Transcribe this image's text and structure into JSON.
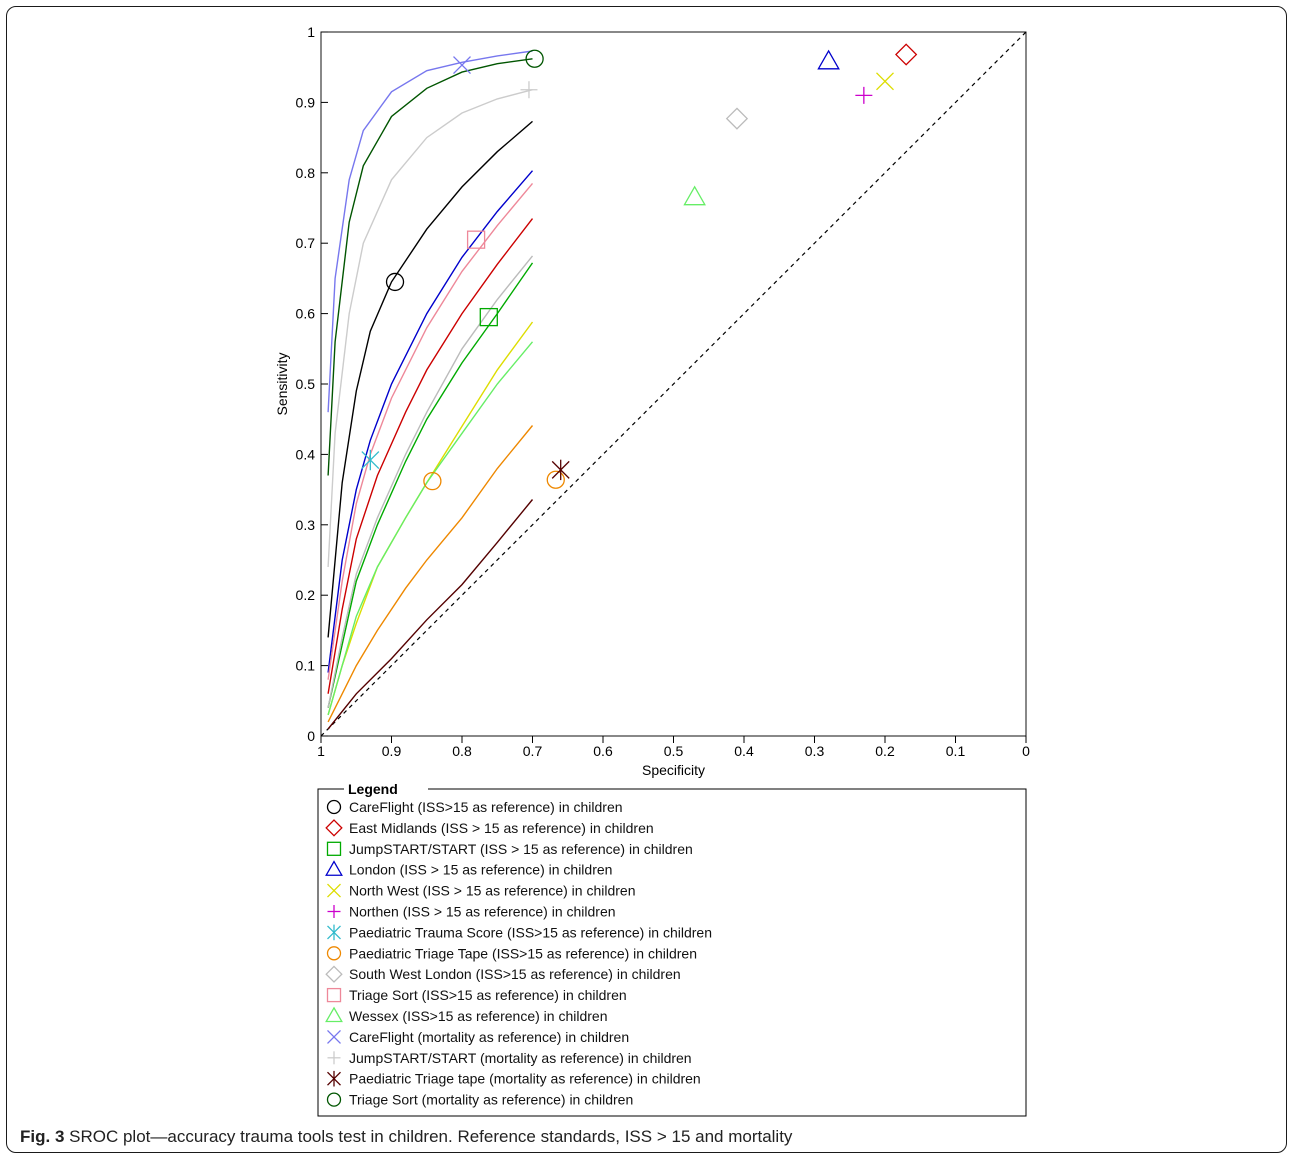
{
  "chart_data": {
    "type": "scatter",
    "xlabel": "Specificity",
    "ylabel": "Sensitivity",
    "xlim": [
      1,
      0
    ],
    "ylim": [
      0,
      1
    ],
    "x_reversed": true,
    "grid": false,
    "xticks": [
      1,
      0.9,
      0.8,
      0.7,
      0.6,
      0.5,
      0.4,
      0.3,
      0.2,
      0.1,
      0
    ],
    "yticks": [
      0,
      0.1,
      0.2,
      0.3,
      0.4,
      0.5,
      0.6,
      0.7,
      0.8,
      0.9,
      1
    ],
    "reference_line": "diagonal-dashed",
    "legend_title": "Legend",
    "legend_position": "below",
    "series": [
      {
        "name": "CareFlight (ISS>15 as reference) in children",
        "marker": "circle",
        "color": "#000000",
        "point": [
          0.895,
          0.645
        ],
        "curve": [
          [
            0.99,
            0.14
          ],
          [
            0.97,
            0.36
          ],
          [
            0.95,
            0.49
          ],
          [
            0.93,
            0.575
          ],
          [
            0.9,
            0.645
          ],
          [
            0.85,
            0.72
          ],
          [
            0.8,
            0.78
          ],
          [
            0.75,
            0.83
          ],
          [
            0.7,
            0.873
          ]
        ]
      },
      {
        "name": "East Midlands (ISS > 15 as reference) in children",
        "marker": "diamond",
        "color": "#cc0000",
        "point": [
          0.17,
          0.968
        ],
        "curve": [
          [
            0.99,
            0.06
          ],
          [
            0.97,
            0.18
          ],
          [
            0.95,
            0.28
          ],
          [
            0.92,
            0.37
          ],
          [
            0.88,
            0.46
          ],
          [
            0.85,
            0.52
          ],
          [
            0.8,
            0.6
          ],
          [
            0.75,
            0.67
          ],
          [
            0.7,
            0.735
          ]
        ]
      },
      {
        "name": "JumpSTART/START (ISS > 15 as reference) in children",
        "marker": "square",
        "color": "#00aa00",
        "point": [
          0.762,
          0.595
        ],
        "curve": [
          [
            0.99,
            0.04
          ],
          [
            0.97,
            0.13
          ],
          [
            0.95,
            0.22
          ],
          [
            0.92,
            0.3
          ],
          [
            0.88,
            0.39
          ],
          [
            0.85,
            0.45
          ],
          [
            0.8,
            0.53
          ],
          [
            0.75,
            0.6
          ],
          [
            0.7,
            0.672
          ]
        ]
      },
      {
        "name": "London (ISS > 15 as reference) in children",
        "marker": "triangle",
        "color": "#0000cc",
        "point": [
          0.28,
          0.958
        ],
        "curve": [
          [
            0.99,
            0.09
          ],
          [
            0.97,
            0.25
          ],
          [
            0.95,
            0.35
          ],
          [
            0.93,
            0.42
          ],
          [
            0.9,
            0.5
          ],
          [
            0.85,
            0.6
          ],
          [
            0.8,
            0.68
          ],
          [
            0.75,
            0.745
          ],
          [
            0.7,
            0.803
          ]
        ]
      },
      {
        "name": "North West (ISS > 15 as reference) in children",
        "marker": "x",
        "color": "#dddd00",
        "point": [
          0.2,
          0.93
        ],
        "curve": [
          [
            0.99,
            0.03
          ],
          [
            0.97,
            0.1
          ],
          [
            0.95,
            0.16
          ],
          [
            0.92,
            0.24
          ],
          [
            0.88,
            0.31
          ],
          [
            0.85,
            0.36
          ],
          [
            0.8,
            0.44
          ],
          [
            0.75,
            0.52
          ],
          [
            0.7,
            0.588
          ]
        ]
      },
      {
        "name": "Northen (ISS > 15 as reference) in children",
        "marker": "plus",
        "color": "#cc00cc",
        "point": [
          0.23,
          0.91
        ]
      },
      {
        "name": "Paediatric Trauma Score (ISS>15 as reference) in children",
        "marker": "asterisk",
        "color": "#33bbcc",
        "point": [
          0.93,
          0.392
        ]
      },
      {
        "name": "Paediatric Triage Tape (ISS>15 as reference) in children",
        "marker": "circle",
        "color": "#ee8800",
        "points": [
          [
            0.842,
            0.362
          ],
          [
            0.667,
            0.364
          ]
        ],
        "curve": [
          [
            0.99,
            0.02
          ],
          [
            0.97,
            0.06
          ],
          [
            0.95,
            0.1
          ],
          [
            0.92,
            0.15
          ],
          [
            0.88,
            0.21
          ],
          [
            0.85,
            0.25
          ],
          [
            0.8,
            0.31
          ],
          [
            0.75,
            0.38
          ],
          [
            0.7,
            0.441
          ]
        ]
      },
      {
        "name": "South West London (ISS>15 as reference) in children",
        "marker": "diamond",
        "color": "#bbbbbb",
        "point": [
          0.41,
          0.877
        ],
        "curve": [
          [
            0.99,
            0.04
          ],
          [
            0.97,
            0.14
          ],
          [
            0.95,
            0.23
          ],
          [
            0.92,
            0.31
          ],
          [
            0.88,
            0.4
          ],
          [
            0.85,
            0.46
          ],
          [
            0.8,
            0.55
          ],
          [
            0.75,
            0.62
          ],
          [
            0.7,
            0.682
          ]
        ]
      },
      {
        "name": "Triage Sort (ISS>15 as reference) in children",
        "marker": "square",
        "color": "#ee8899",
        "point": [
          0.78,
          0.705
        ],
        "curve": [
          [
            0.99,
            0.08
          ],
          [
            0.97,
            0.22
          ],
          [
            0.95,
            0.33
          ],
          [
            0.93,
            0.4
          ],
          [
            0.9,
            0.48
          ],
          [
            0.85,
            0.58
          ],
          [
            0.8,
            0.66
          ],
          [
            0.75,
            0.725
          ],
          [
            0.7,
            0.785
          ]
        ]
      },
      {
        "name": "Wessex (ISS>15 as reference) in children",
        "marker": "triangle",
        "color": "#66ee66",
        "point": [
          0.47,
          0.765
        ],
        "curve": [
          [
            0.99,
            0.03
          ],
          [
            0.97,
            0.1
          ],
          [
            0.95,
            0.17
          ],
          [
            0.92,
            0.24
          ],
          [
            0.88,
            0.31
          ],
          [
            0.85,
            0.36
          ],
          [
            0.8,
            0.43
          ],
          [
            0.75,
            0.5
          ],
          [
            0.7,
            0.56
          ]
        ]
      },
      {
        "name": "CareFlight (mortality as reference) in children",
        "marker": "x",
        "color": "#7777ee",
        "point": [
          0.8,
          0.953
        ],
        "curve": [
          [
            0.99,
            0.46
          ],
          [
            0.98,
            0.65
          ],
          [
            0.96,
            0.79
          ],
          [
            0.94,
            0.86
          ],
          [
            0.9,
            0.915
          ],
          [
            0.85,
            0.945
          ],
          [
            0.8,
            0.957
          ],
          [
            0.75,
            0.966
          ],
          [
            0.7,
            0.973
          ]
        ]
      },
      {
        "name": "JumpSTART/START (mortality as reference) in children",
        "marker": "plus",
        "color": "#cccccc",
        "point": [
          0.705,
          0.918
        ],
        "curve": [
          [
            0.99,
            0.24
          ],
          [
            0.98,
            0.43
          ],
          [
            0.96,
            0.6
          ],
          [
            0.94,
            0.7
          ],
          [
            0.9,
            0.79
          ],
          [
            0.85,
            0.85
          ],
          [
            0.8,
            0.885
          ],
          [
            0.75,
            0.905
          ],
          [
            0.7,
            0.918
          ]
        ]
      },
      {
        "name": "Paediatric Triage tape (mortality as reference) in children",
        "marker": "asterisk",
        "color": "#550000",
        "point": [
          0.66,
          0.378
        ],
        "curve": [
          [
            0.99,
            0.01
          ],
          [
            0.95,
            0.06
          ],
          [
            0.9,
            0.11
          ],
          [
            0.85,
            0.165
          ],
          [
            0.8,
            0.215
          ],
          [
            0.75,
            0.275
          ],
          [
            0.7,
            0.336
          ]
        ]
      },
      {
        "name": "Triage Sort (mortality as reference) in children",
        "marker": "circle",
        "color": "#005500",
        "point": [
          0.697,
          0.962
        ],
        "curve": [
          [
            0.99,
            0.37
          ],
          [
            0.98,
            0.56
          ],
          [
            0.96,
            0.73
          ],
          [
            0.94,
            0.81
          ],
          [
            0.9,
            0.88
          ],
          [
            0.85,
            0.92
          ],
          [
            0.8,
            0.943
          ],
          [
            0.75,
            0.955
          ],
          [
            0.7,
            0.962
          ]
        ]
      }
    ]
  },
  "caption": {
    "label": "Fig. 3",
    "text": " SROC plot—accuracy trauma tools test in children. Reference standards, ISS > 15 and mortality"
  }
}
